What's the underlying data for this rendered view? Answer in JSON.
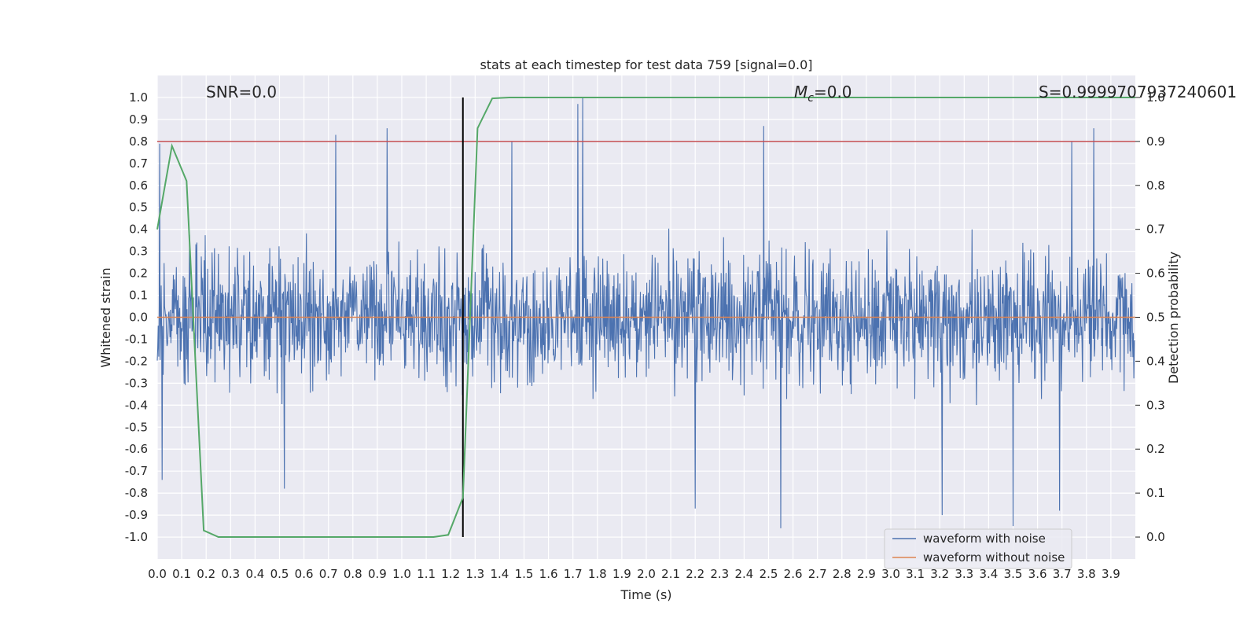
{
  "chart_data": {
    "type": "line",
    "title": "stats at each timestep for test data 759 [signal=0.0]",
    "xlabel": "Time (s)",
    "ylabel": "Whitened strain",
    "y2label": "Detection probability",
    "xlim": [
      0.0,
      4.0
    ],
    "ylim": [
      -1.1,
      1.1
    ],
    "y2lim": [
      -0.05,
      1.05
    ],
    "x_ticks": [
      "0.0",
      "0.1",
      "0.2",
      "0.3",
      "0.4",
      "0.5",
      "0.6",
      "0.7",
      "0.8",
      "0.9",
      "1.0",
      "1.1",
      "1.2",
      "1.3",
      "1.4",
      "1.5",
      "1.6",
      "1.7",
      "1.8",
      "1.9",
      "2.0",
      "2.1",
      "2.2",
      "2.3",
      "2.4",
      "2.5",
      "2.6",
      "2.7",
      "2.8",
      "2.9",
      "3.0",
      "3.1",
      "3.2",
      "3.3",
      "3.4",
      "3.5",
      "3.6",
      "3.7",
      "3.8",
      "3.9"
    ],
    "y_ticks": [
      "-1.0",
      "-0.9",
      "-0.8",
      "-0.7",
      "-0.6",
      "-0.5",
      "-0.4",
      "-0.3",
      "-0.2",
      "-0.1",
      "0.0",
      "0.1",
      "0.2",
      "0.3",
      "0.4",
      "0.5",
      "0.6",
      "0.7",
      "0.8",
      "0.9",
      "1.0"
    ],
    "y2_ticks": [
      "0.0",
      "0.1",
      "0.2",
      "0.3",
      "0.4",
      "0.5",
      "0.6",
      "0.7",
      "0.8",
      "0.9",
      "1.0"
    ],
    "annotations": {
      "snr": "SNR=0.0",
      "mc_symbol": "M",
      "mc_subscript": "c",
      "mc_value": "=0.0",
      "s_label": "S=0.9999707937240601"
    },
    "series": [
      {
        "name": "waveform with noise",
        "color": "#4c72b0",
        "noise_amplitude": 0.35,
        "peaks": [
          {
            "x": 0.01,
            "y": 0.79
          },
          {
            "x": 0.73,
            "y": 0.83
          },
          {
            "x": 0.94,
            "y": 0.86
          },
          {
            "x": 1.45,
            "y": 0.8
          },
          {
            "x": 1.72,
            "y": 0.97
          },
          {
            "x": 1.74,
            "y": 1.0
          },
          {
            "x": 2.48,
            "y": 0.87
          },
          {
            "x": 3.74,
            "y": 0.8
          },
          {
            "x": 3.83,
            "y": 0.86
          },
          {
            "x": 0.02,
            "y": -0.74
          },
          {
            "x": 0.52,
            "y": -0.78
          },
          {
            "x": 2.2,
            "y": -0.87
          },
          {
            "x": 2.55,
            "y": -0.96
          },
          {
            "x": 3.21,
            "y": -0.9
          },
          {
            "x": 3.5,
            "y": -0.95
          },
          {
            "x": 3.69,
            "y": -0.88
          }
        ]
      },
      {
        "name": "waveform without noise",
        "color": "#dd8452",
        "x": [
          0.0,
          4.0
        ],
        "y": [
          0.0,
          0.0
        ]
      },
      {
        "color": "#55a868",
        "axis": "y2",
        "x": [
          0.0,
          0.06,
          0.12,
          0.19,
          0.25,
          0.5,
          1.0,
          1.13,
          1.19,
          1.25,
          1.31,
          1.37,
          1.44,
          2.0,
          3.0,
          4.0
        ],
        "y": [
          0.7,
          0.89,
          0.81,
          0.015,
          0.0,
          0.0,
          0.0,
          0.0,
          0.005,
          0.09,
          0.93,
          0.998,
          1.0,
          1.0,
          1.0,
          1.0
        ]
      }
    ],
    "hlines": [
      {
        "y": 0.8,
        "color": "#c44e52"
      }
    ],
    "vlines": [
      {
        "x": 1.25,
        "color": "#000000"
      }
    ],
    "legend": {
      "placement": "lower right",
      "items": [
        "waveform with noise",
        "waveform without noise"
      ]
    },
    "grid": true
  }
}
